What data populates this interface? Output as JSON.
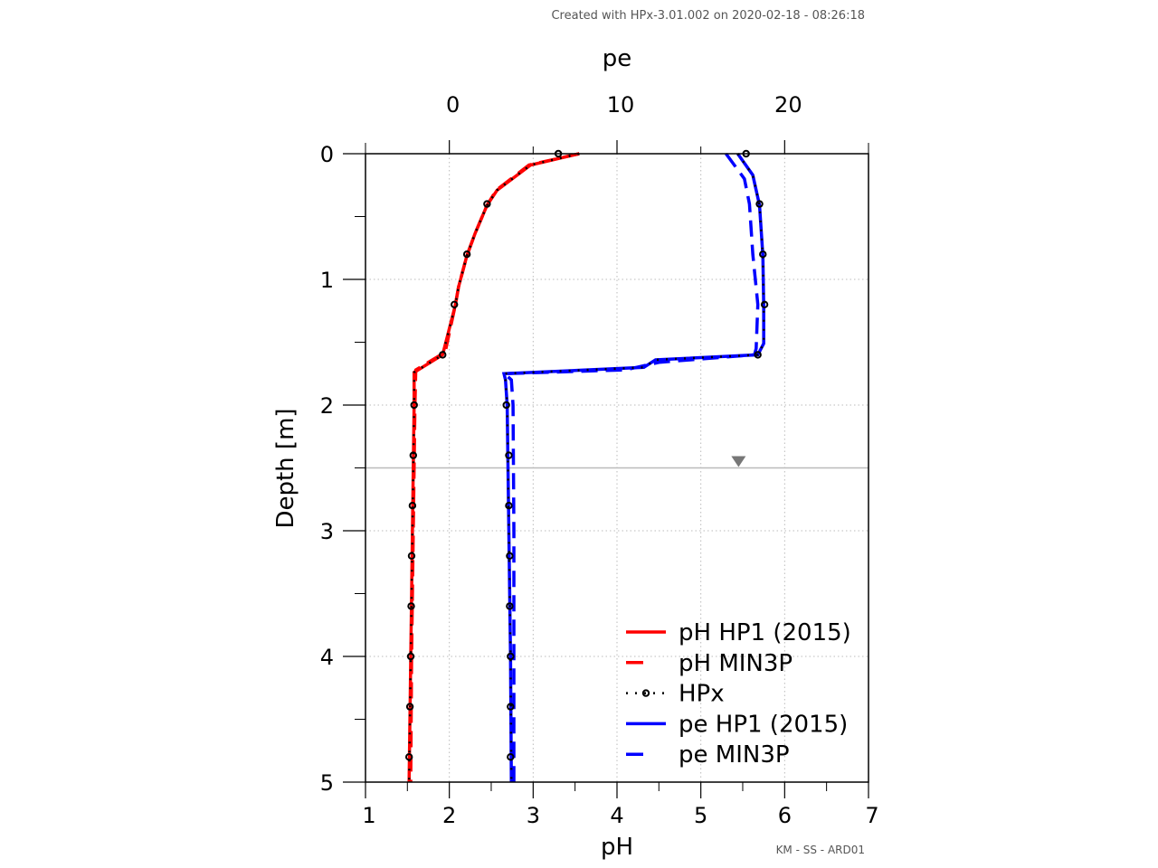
{
  "credit": "Created with HPx-3.01.002  on 2020-02-18 - 08:26:18",
  "footer": "KM - SS - ARD01",
  "chart_data": {
    "type": "line",
    "xlabel": "pH",
    "x2label": "pe",
    "ylabel": "Depth [m]",
    "xlim": [
      1,
      7
    ],
    "x2lim": [
      -5,
      25
    ],
    "ylim": [
      0,
      5
    ],
    "y_inverted": true,
    "xticks": [
      "1",
      "2",
      "3",
      "4",
      "5",
      "6",
      "7"
    ],
    "x2ticks": [
      "0",
      "10",
      "20"
    ],
    "yticks": [
      "0",
      "1",
      "2",
      "3",
      "4",
      "5"
    ],
    "grid": true,
    "legend_position": "bottom-right",
    "water_table_depth": 2.5,
    "colors": {
      "ph": "#ff0000",
      "pe": "#0000ff",
      "hpx": "#000000",
      "water_table": "#bbbbbb"
    },
    "series": [
      {
        "name": "pH HP1 (2015)",
        "axis": "pH",
        "style": "solid",
        "color": "#ff0000",
        "depth": [
          0,
          0.09,
          0.29,
          0.41,
          0.63,
          0.81,
          1.06,
          1.21,
          1.6,
          1.74,
          2.0,
          3.0,
          4.0,
          5.0
        ],
        "values": [
          3.55,
          2.97,
          2.57,
          2.45,
          2.31,
          2.21,
          2.11,
          2.07,
          1.92,
          1.58,
          1.58,
          1.56,
          1.54,
          1.52
        ]
      },
      {
        "name": "pH MIN3P",
        "axis": "pH",
        "style": "dashed",
        "color": "#ff0000",
        "depth": [
          0,
          0.09,
          0.29,
          0.41,
          0.63,
          0.81,
          1.06,
          1.21,
          1.58,
          1.72,
          2.0,
          3.0,
          4.0,
          5.0
        ],
        "values": [
          3.55,
          2.95,
          2.56,
          2.45,
          2.31,
          2.21,
          2.11,
          2.07,
          1.95,
          1.6,
          1.59,
          1.57,
          1.55,
          1.54
        ]
      },
      {
        "name": "HPx",
        "axis": "pH",
        "style": "dotted-marker",
        "color": "#000000",
        "depth": [
          0,
          0.4,
          0.8,
          1.2,
          1.6,
          2.0,
          2.4,
          2.8,
          3.2,
          3.6,
          4.0,
          4.4,
          4.8
        ],
        "values": [
          3.3,
          2.45,
          2.21,
          2.06,
          1.92,
          1.58,
          1.57,
          1.56,
          1.55,
          1.545,
          1.54,
          1.53,
          1.52
        ]
      },
      {
        "name": "pe HP1 (2015)",
        "axis": "pe",
        "style": "solid",
        "color": "#0000ff",
        "depth": [
          0,
          0.17,
          0.41,
          0.81,
          1.21,
          1.51,
          1.6,
          1.64,
          1.7,
          1.75,
          1.8,
          2.0,
          3.0,
          4.0,
          5.0
        ],
        "values": [
          17.2,
          18.1,
          18.5,
          18.7,
          18.75,
          18.75,
          18.4,
          12.3,
          11.6,
          3.26,
          3.35,
          3.45,
          3.55,
          3.65,
          3.7
        ]
      },
      {
        "name": "pe MIN3P",
        "axis": "pe",
        "style": "dashed",
        "color": "#0000ff",
        "depth": [
          0,
          0.2,
          0.4,
          0.8,
          1.2,
          1.55,
          1.6,
          1.66,
          1.72,
          1.75,
          1.8,
          2.0,
          3.0,
          4.0,
          5.0
        ],
        "values": [
          16.5,
          17.6,
          17.9,
          18.1,
          18.4,
          18.3,
          18.2,
          12.5,
          10.5,
          3.3,
          3.7,
          3.8,
          3.85,
          3.85,
          3.85
        ]
      },
      {
        "axis": "pe",
        "style": "dotted-marker",
        "color": "#000000",
        "depth": [
          0,
          0.4,
          0.8,
          1.2,
          1.6,
          2.0,
          2.4,
          2.8,
          3.2,
          3.6,
          4.0,
          4.4,
          4.8
        ],
        "values": [
          17.7,
          18.5,
          18.7,
          18.8,
          18.4,
          3.4,
          3.55,
          3.55,
          3.6,
          3.6,
          3.65,
          3.65,
          3.65
        ]
      }
    ]
  }
}
